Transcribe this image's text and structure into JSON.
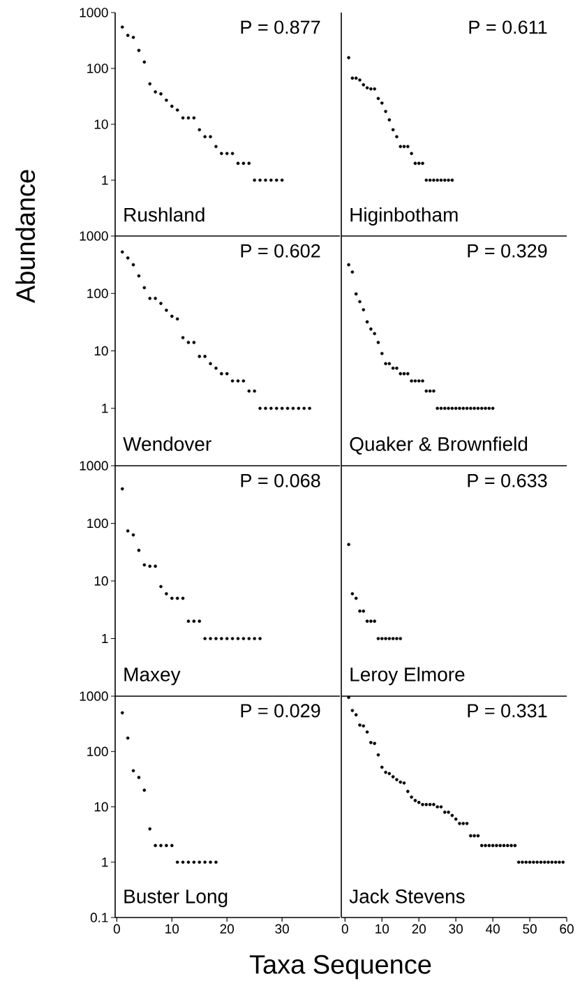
{
  "chart_data": [
    {
      "type": "scatter",
      "title": "Rushland",
      "annotations": [
        "P = 0.877"
      ],
      "marker": "circle",
      "log": "y",
      "tick_labels": "y",
      "xlim": [
        -0.3,
        40.5
      ],
      "ylim": [
        0.1,
        1000
      ],
      "yticks": [
        1,
        10,
        100,
        1000
      ],
      "x": [
        1,
        2,
        3,
        4,
        5,
        6,
        7,
        8,
        9,
        10,
        11,
        12,
        13,
        14,
        15,
        16,
        17,
        18,
        19,
        20,
        21,
        22,
        23,
        24,
        25,
        26,
        27,
        28,
        29,
        30
      ],
      "series": [
        {
          "color": "#000000",
          "values": [
            550,
            390,
            360,
            210,
            130,
            53,
            38,
            35,
            27,
            21,
            18,
            13,
            13,
            13,
            8,
            6,
            6,
            4,
            3,
            3,
            3,
            2,
            2,
            2,
            1,
            1,
            1,
            1,
            1,
            1
          ]
        }
      ]
    },
    {
      "type": "scatter",
      "title": "Higinbotham",
      "annotations": [
        "P = 0.611"
      ],
      "marker": "circle",
      "log": "y",
      "tick_labels": false,
      "xlim": [
        -1,
        60
      ],
      "ylim": [
        0.1,
        1000
      ],
      "x": [
        1,
        2,
        3,
        4,
        5,
        6,
        7,
        8,
        9,
        10,
        11,
        12,
        13,
        14,
        15,
        16,
        17,
        18,
        19,
        20,
        21,
        22,
        23,
        24,
        25,
        26,
        27,
        28,
        29
      ],
      "series": [
        {
          "color": "#000000",
          "values": [
            156,
            67,
            67,
            62,
            51,
            45,
            43,
            43,
            29,
            24,
            17,
            12,
            8,
            6,
            4,
            4,
            4,
            3,
            2,
            2,
            2,
            1,
            1,
            1,
            1,
            1,
            1,
            1,
            1
          ]
        }
      ]
    },
    {
      "type": "scatter",
      "title": "Wendover",
      "annotations": [
        "P = 0.602"
      ],
      "ylabel": "Abundance",
      "marker": "circle",
      "log": "y",
      "tick_labels": "y",
      "xlim": [
        -0.3,
        40.5
      ],
      "ylim": [
        0.1,
        1000
      ],
      "yticks": [
        1,
        10,
        100,
        1000
      ],
      "x": [
        1,
        2,
        3,
        4,
        5,
        6,
        7,
        8,
        9,
        10,
        11,
        12,
        13,
        14,
        15,
        16,
        17,
        18,
        19,
        20,
        21,
        22,
        23,
        24,
        25,
        26,
        27,
        28,
        29,
        30,
        31,
        32,
        33,
        34,
        35
      ],
      "series": [
        {
          "color": "#000000",
          "values": [
            528,
            415,
            316,
            202,
            126,
            82,
            82,
            67,
            51,
            40,
            36,
            17,
            14,
            14,
            8,
            8,
            6,
            5,
            4,
            4,
            3,
            3,
            3,
            2,
            2,
            1,
            1,
            1,
            1,
            1,
            1,
            1,
            1,
            1,
            1
          ]
        }
      ]
    },
    {
      "type": "scatter",
      "title": "Quaker & Brownfield",
      "annotations": [
        "P = 0.329"
      ],
      "marker": "circle",
      "log": "y",
      "tick_labels": false,
      "xlim": [
        -1,
        60
      ],
      "ylim": [
        0.1,
        1000
      ],
      "x": [
        1,
        2,
        3,
        4,
        5,
        6,
        7,
        8,
        9,
        10,
        11,
        12,
        13,
        14,
        15,
        16,
        17,
        18,
        19,
        20,
        21,
        22,
        23,
        24,
        25,
        26,
        27,
        28,
        29,
        30,
        31,
        32,
        33,
        34,
        35,
        36,
        37,
        38,
        39,
        40
      ],
      "series": [
        {
          "color": "#000000",
          "values": [
            316,
            236,
            98,
            72,
            52,
            32,
            24,
            20,
            14,
            9,
            6,
            6,
            5,
            5,
            4,
            4,
            4,
            3,
            3,
            3,
            3,
            2,
            2,
            2,
            1,
            1,
            1,
            1,
            1,
            1,
            1,
            1,
            1,
            1,
            1,
            1,
            1,
            1,
            1,
            1
          ]
        }
      ]
    },
    {
      "type": "scatter",
      "title": "Maxey",
      "annotations": [
        "P = 0.068"
      ],
      "marker": "circle",
      "log": "y",
      "tick_labels": "y",
      "xlim": [
        -0.3,
        40.5
      ],
      "ylim": [
        0.1,
        1000
      ],
      "yticks": [
        1,
        10,
        100,
        1000
      ],
      "x": [
        1,
        2,
        3,
        4,
        5,
        6,
        7,
        8,
        9,
        10,
        11,
        12,
        13,
        14,
        15,
        16,
        17,
        18,
        19,
        20,
        21,
        22,
        23,
        24,
        25,
        26
      ],
      "series": [
        {
          "color": "#000000",
          "values": [
            397,
            74,
            63,
            34,
            19,
            18,
            18,
            8,
            6,
            5,
            5,
            5,
            2,
            2,
            2,
            1,
            1,
            1,
            1,
            1,
            1,
            1,
            1,
            1,
            1,
            1
          ]
        }
      ]
    },
    {
      "type": "scatter",
      "title": "Leroy Elmore",
      "annotations": [
        "P = 0.633"
      ],
      "marker": "circle",
      "log": "y",
      "tick_labels": false,
      "xlim": [
        -1,
        60
      ],
      "ylim": [
        0.1,
        1000
      ],
      "x": [
        1,
        2,
        3,
        4,
        5,
        6,
        7,
        8,
        9,
        10,
        11,
        12,
        13,
        14,
        15
      ],
      "series": [
        {
          "color": "#000000",
          "values": [
            43,
            6,
            5,
            3,
            3,
            2,
            2,
            2,
            1,
            1,
            1,
            1,
            1,
            1,
            1
          ]
        }
      ]
    },
    {
      "type": "scatter",
      "title": "Buster Long",
      "annotations": [
        "P = 0.029"
      ],
      "xlabel": "Taxa Sequence",
      "marker": "circle",
      "log": "y",
      "xlim": [
        -0.3,
        40.5
      ],
      "xticks": [
        0,
        10,
        20,
        30
      ],
      "ylim": [
        0.1,
        1000
      ],
      "yticks": [
        0.1,
        1,
        10,
        100,
        1000
      ],
      "x": [
        1,
        2,
        3,
        4,
        5,
        6,
        7,
        8,
        9,
        10,
        11,
        12,
        13,
        14,
        15,
        16,
        17,
        18
      ],
      "series": [
        {
          "color": "#000000",
          "values": [
            500,
            175,
            45,
            34,
            20,
            4,
            2,
            2,
            2,
            2,
            1,
            1,
            1,
            1,
            1,
            1,
            1,
            1
          ]
        }
      ]
    },
    {
      "type": "scatter",
      "title": "Jack Stevens",
      "annotations": [
        "P = 0.331"
      ],
      "marker": "circle",
      "log": "y",
      "tick_labels": "x",
      "xlim": [
        -1,
        60
      ],
      "xticks": [
        0,
        10,
        20,
        30,
        40,
        50,
        60
      ],
      "ylim": [
        0.1,
        1000
      ],
      "x": [
        1,
        2,
        3,
        4,
        5,
        6,
        7,
        8,
        9,
        10,
        11,
        12,
        13,
        14,
        15,
        16,
        17,
        18,
        19,
        20,
        21,
        22,
        23,
        24,
        25,
        26,
        27,
        28,
        29,
        30,
        31,
        32,
        33,
        34,
        35,
        36,
        37,
        38,
        39,
        40,
        41,
        42,
        43,
        44,
        45,
        46,
        47,
        48,
        49,
        50,
        51,
        52,
        53,
        54,
        55,
        56,
        57,
        58,
        59
      ],
      "series": [
        {
          "color": "#000000",
          "values": [
            950,
            550,
            460,
            300,
            290,
            225,
            145,
            140,
            87,
            52,
            42,
            40,
            35,
            31,
            28,
            27,
            19,
            15,
            13,
            12,
            11,
            11,
            11,
            11,
            10,
            10,
            8,
            8,
            7,
            6,
            5,
            5,
            5,
            3,
            3,
            3,
            2,
            2,
            2,
            2,
            2,
            2,
            2,
            2,
            2,
            2,
            1,
            1,
            1,
            1,
            1,
            1,
            1,
            1,
            1,
            1,
            1,
            1,
            1
          ]
        }
      ]
    }
  ]
}
